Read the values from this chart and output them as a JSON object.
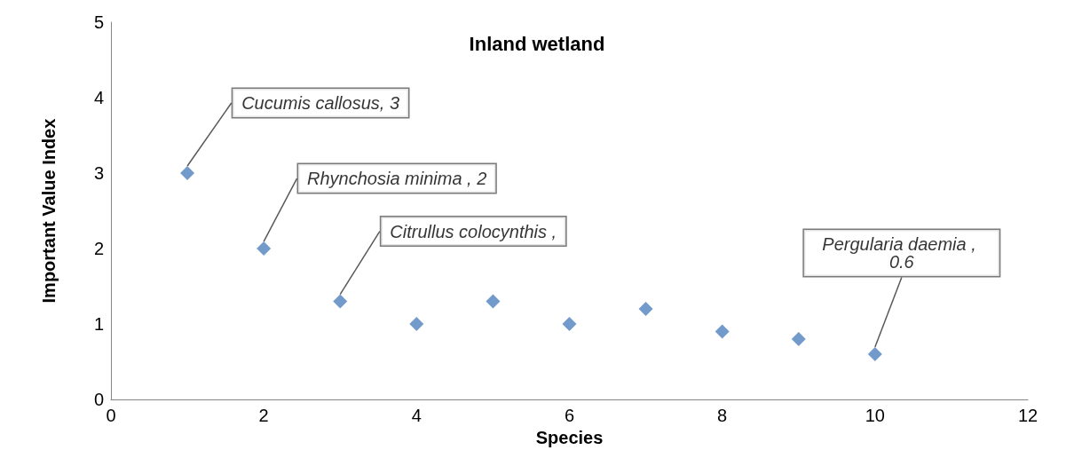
{
  "chart_data": {
    "type": "scatter",
    "title": "Inland wetland",
    "xlabel": "Species",
    "ylabel": "Important Value Index",
    "x": [
      1,
      2,
      3,
      4,
      5,
      6,
      7,
      8,
      9,
      10
    ],
    "values": [
      3,
      2,
      1.3,
      1,
      1.3,
      1,
      1.2,
      0.9,
      0.8,
      0.6
    ],
    "color": "#4f81bd",
    "marker": "diamond",
    "xlim": [
      0,
      12
    ],
    "xticks": [
      0,
      2,
      4,
      6,
      8,
      10,
      12
    ],
    "ylim": [
      0,
      5
    ],
    "yticks": [
      0,
      1,
      2,
      3,
      4,
      5
    ],
    "grid": false,
    "annotations": [
      {
        "text": "Cucumis callosus, 3",
        "x": 1,
        "y": 3
      },
      {
        "text": "Rhynchosia minima , 2",
        "x": 2,
        "y": 2
      },
      {
        "text": "Citrullus colocynthis ,",
        "x": 3,
        "y": 1.3
      },
      {
        "text": "Pergularia daemia , 0.6",
        "x": 10,
        "y": 0.6
      }
    ]
  }
}
